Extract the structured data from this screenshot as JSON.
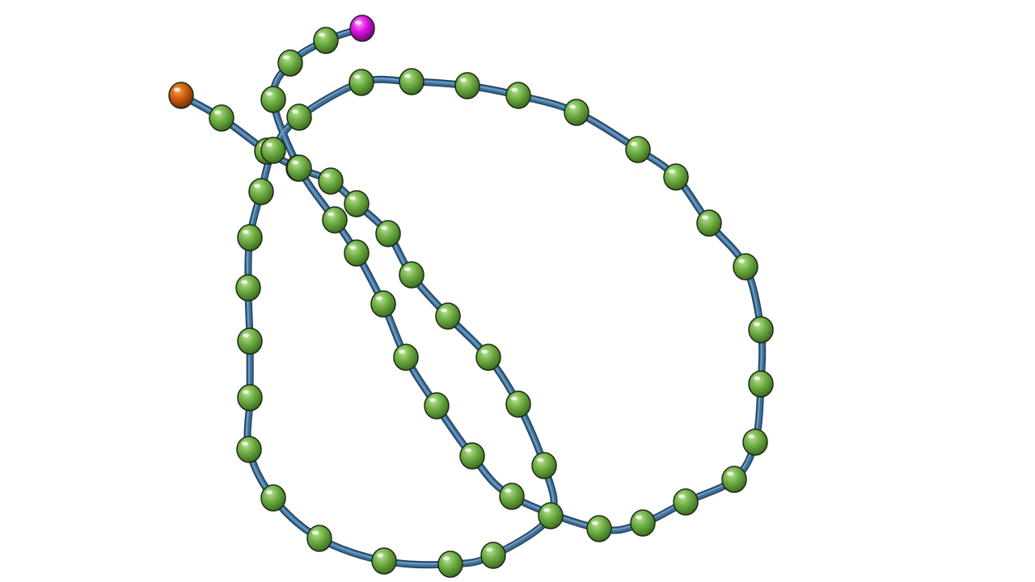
{
  "colors": {
    "background": "#ffffff",
    "backbone": "#3f6f98",
    "backbone_highlight": "#7fb0d6",
    "bead": "#72b046",
    "bead_dark": "#3a6b1e",
    "bead_light": "#b9e29a",
    "start_bead": "#d2600f",
    "end_bead": "#e012e4",
    "outline": "#1b2a12"
  },
  "chain": {
    "bead_count": 60,
    "start_marker": "orange-sphere",
    "end_marker": "magenta-sphere"
  }
}
